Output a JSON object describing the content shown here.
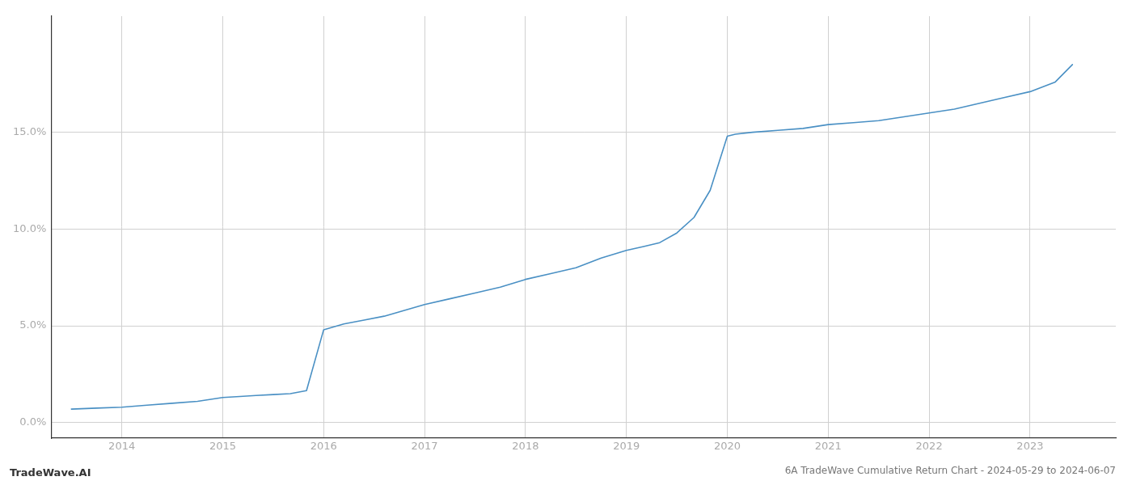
{
  "chart_data": {
    "type": "line",
    "title": "6A TradeWave Cumulative Return Chart - 2024-05-29 to 2024-06-07",
    "annotations": [
      "TradeWave.AI"
    ],
    "x": [
      2013.5,
      2013.75,
      2014.0,
      2014.25,
      2014.5,
      2014.75,
      2015.0,
      2015.17,
      2015.33,
      2015.5,
      2015.67,
      2015.83,
      2016.0,
      2016.2,
      2016.4,
      2016.6,
      2016.8,
      2017.0,
      2017.25,
      2017.5,
      2017.75,
      2018.0,
      2018.25,
      2018.5,
      2018.75,
      2019.0,
      2019.17,
      2019.33,
      2019.5,
      2019.67,
      2019.83,
      2020.0,
      2020.08,
      2020.25,
      2020.5,
      2020.75,
      2021.0,
      2021.25,
      2021.5,
      2021.75,
      2022.0,
      2022.25,
      2022.5,
      2022.75,
      2023.0,
      2023.25,
      2023.42
    ],
    "values": [
      0.007,
      0.0075,
      0.008,
      0.009,
      0.01,
      0.011,
      0.013,
      0.0135,
      0.014,
      0.0145,
      0.015,
      0.0165,
      0.048,
      0.051,
      0.053,
      0.055,
      0.058,
      0.061,
      0.064,
      0.067,
      0.07,
      0.074,
      0.077,
      0.08,
      0.085,
      0.089,
      0.091,
      0.093,
      0.098,
      0.106,
      0.12,
      0.148,
      0.149,
      0.15,
      0.151,
      0.152,
      0.154,
      0.155,
      0.156,
      0.158,
      0.16,
      0.162,
      0.165,
      0.168,
      0.171,
      0.176,
      0.185
    ],
    "color": "#4a90c4",
    "xlim": [
      2013.3,
      2023.85
    ],
    "xticks": [
      2014,
      2015,
      2016,
      2017,
      2018,
      2019,
      2020,
      2021,
      2022,
      2023
    ],
    "ylim": [
      -0.008,
      0.21
    ],
    "yticks": [
      {
        "value": 0.0,
        "label": "0.0%"
      },
      {
        "value": 0.05,
        "label": "5.0%"
      },
      {
        "value": 0.1,
        "label": "10.0%"
      },
      {
        "value": 0.15,
        "label": "15.0%"
      }
    ],
    "grid": true
  }
}
